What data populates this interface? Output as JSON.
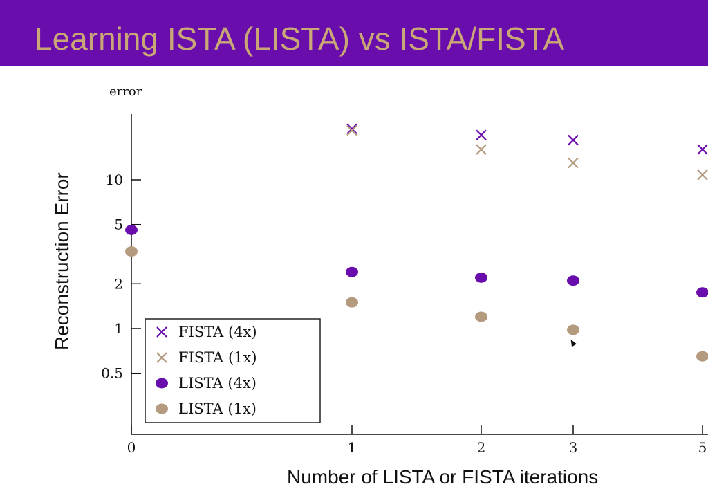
{
  "slide": {
    "title": "Learning ISTA (LISTA) vs ISTA/FISTA"
  },
  "colors": {
    "title_bar": "#6a0dad",
    "title_text": "#c9a777",
    "purple": "#6a0dad",
    "tan": "#b49a7e"
  },
  "chart_data": {
    "type": "scatter",
    "title": "",
    "unit_label": "error",
    "xlabel": "Number of LISTA or FISTA iterations",
    "ylabel": "Reconstruction Error",
    "y_scale": "log",
    "x_ticks": [
      {
        "value": 0,
        "label": "0"
      },
      {
        "value": 1,
        "label": "1"
      },
      {
        "value": 2,
        "label": "2"
      },
      {
        "value": 3,
        "label": "3"
      },
      {
        "value": 5,
        "label": "5"
      }
    ],
    "y_ticks": [
      {
        "value": 0.5,
        "label": "0.5"
      },
      {
        "value": 1,
        "label": "1"
      },
      {
        "value": 2,
        "label": "2"
      },
      {
        "value": 5,
        "label": "5"
      },
      {
        "value": 10,
        "label": "10"
      }
    ],
    "legend_position": "bottom-left",
    "series": [
      {
        "name": "FISTA (4x)",
        "marker": "x",
        "color": "#6a0dad",
        "points": [
          [
            1,
            22
          ],
          [
            2,
            20
          ],
          [
            3,
            18.5
          ],
          [
            5,
            16
          ]
        ]
      },
      {
        "name": "FISTA (1x)",
        "marker": "x",
        "color": "#b49a7e",
        "points": [
          [
            1,
            21.5
          ],
          [
            2,
            16
          ],
          [
            3,
            13
          ],
          [
            5,
            10.8
          ]
        ]
      },
      {
        "name": "LISTA (4x)",
        "marker": "dot",
        "color": "#6a0dad",
        "points": [
          [
            0,
            4.6
          ],
          [
            1,
            2.4
          ],
          [
            2,
            2.2
          ],
          [
            3,
            2.1
          ],
          [
            5,
            1.75
          ]
        ]
      },
      {
        "name": "LISTA (1x)",
        "marker": "dot",
        "color": "#b49a7e",
        "points": [
          [
            0,
            3.3
          ],
          [
            1,
            1.5
          ],
          [
            2,
            1.2
          ],
          [
            3,
            0.98
          ],
          [
            5,
            0.65
          ]
        ]
      }
    ]
  }
}
